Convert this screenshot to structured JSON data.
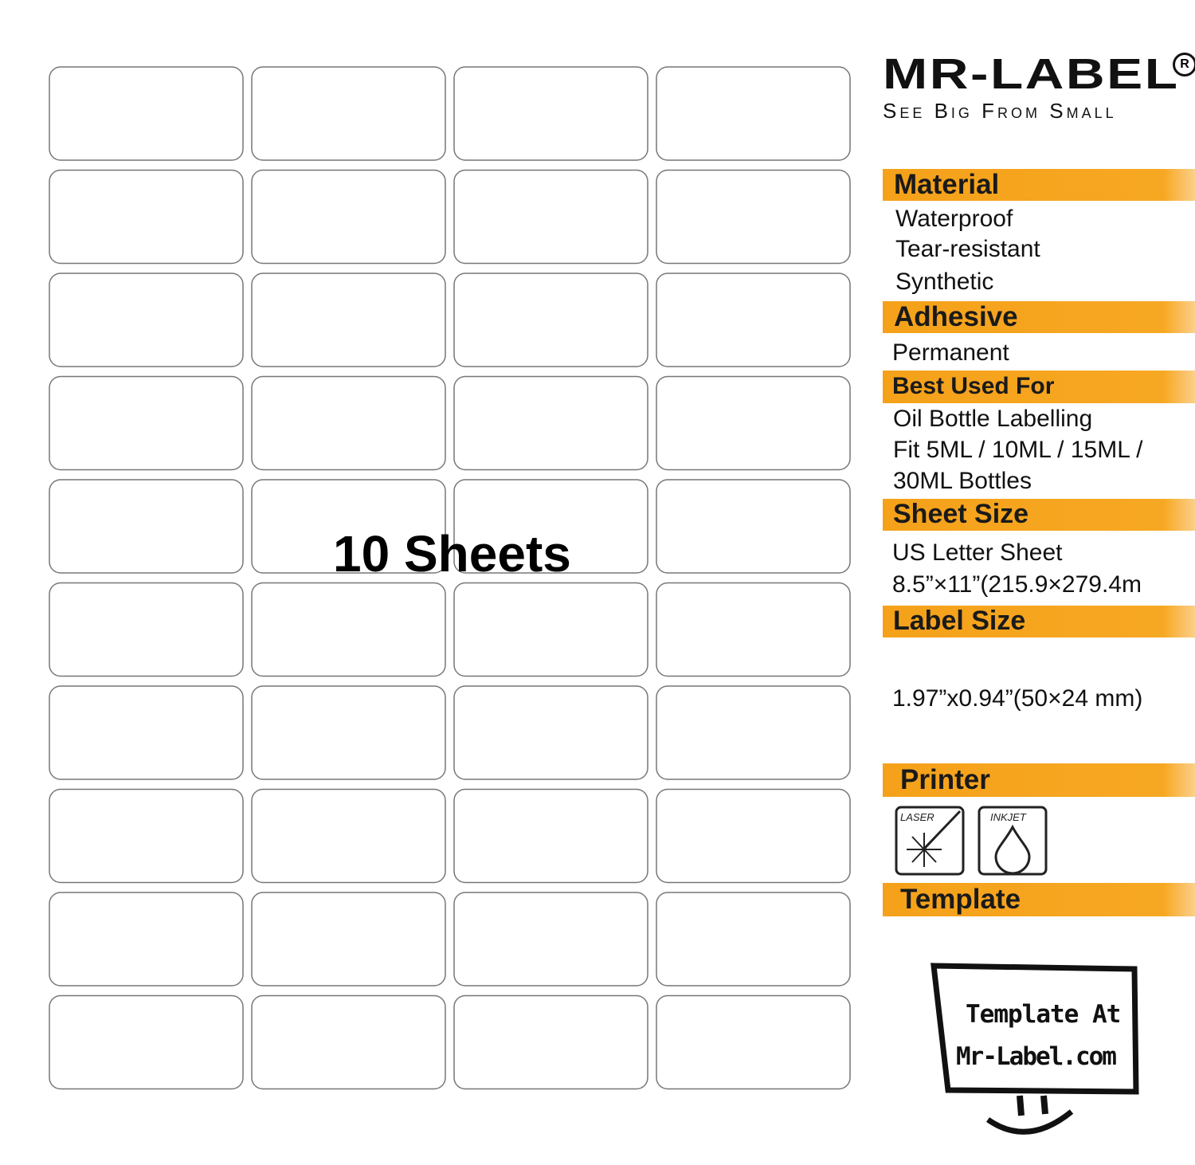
{
  "brand": {
    "name": "MR-LABEL",
    "registered": "R",
    "tagline": "See Big From Small"
  },
  "overlay": "10 Sheets",
  "sections": [
    {
      "title": "Material",
      "lines": [
        "Waterproof",
        "Tear-resistant",
        "Synthetic"
      ]
    },
    {
      "title": "Adhesive",
      "lines": [
        "Permanent"
      ]
    },
    {
      "title": "Best Used For",
      "lines": [
        "Oil Bottle Labelling",
        "Fit 5ML / 10ML / 15ML /",
        "30ML Bottles"
      ]
    },
    {
      "title": "Sheet Size",
      "lines": [
        "US Letter Sheet",
        "8.5”×11”(215.9×279.4m"
      ]
    },
    {
      "title": "Label Size",
      "lines": [
        "1.97”x0.94”(50×24 mm)"
      ]
    },
    {
      "title": "Printer",
      "lines": []
    },
    {
      "title": "Template",
      "lines": []
    }
  ],
  "printer": {
    "laser": "LASER",
    "inkjet": "INKJET"
  },
  "template": {
    "line1": "Template At",
    "line2": "Mr-Label.com"
  }
}
